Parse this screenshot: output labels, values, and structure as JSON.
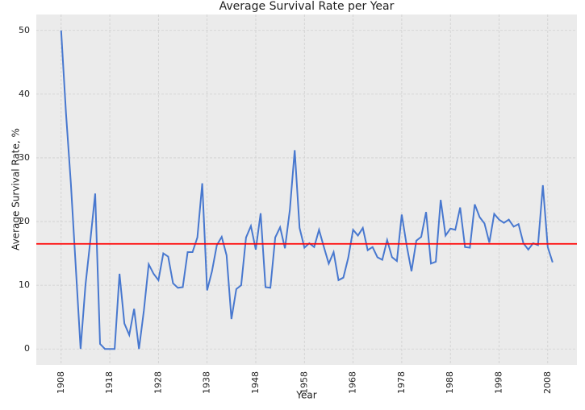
{
  "chart_data": {
    "type": "line",
    "title": "Average Survival Rate per Year",
    "x_label": "Year",
    "y_label": "Average Survival Rate, %",
    "x": [
      1908,
      1909,
      1910,
      1911,
      1912,
      1913,
      1914,
      1915,
      1916,
      1917,
      1918,
      1919,
      1920,
      1921,
      1922,
      1923,
      1924,
      1925,
      1926,
      1927,
      1928,
      1929,
      1930,
      1931,
      1932,
      1933,
      1934,
      1935,
      1936,
      1937,
      1938,
      1939,
      1940,
      1941,
      1942,
      1943,
      1944,
      1945,
      1946,
      1947,
      1948,
      1949,
      1950,
      1951,
      1952,
      1953,
      1954,
      1955,
      1956,
      1957,
      1958,
      1959,
      1960,
      1961,
      1962,
      1963,
      1964,
      1965,
      1966,
      1967,
      1968,
      1969,
      1970,
      1971,
      1972,
      1973,
      1974,
      1975,
      1976,
      1977,
      1978,
      1979,
      1980,
      1981,
      1982,
      1983,
      1984,
      1985,
      1986,
      1987,
      1988,
      1989,
      1990,
      1991,
      1992,
      1993,
      1994,
      1995,
      1996,
      1997,
      1998,
      1999,
      2000,
      2001,
      2002,
      2003,
      2004,
      2005,
      2006,
      2007,
      2008,
      2009
    ],
    "series": [
      {
        "color": "#4878cf",
        "values": [
          50,
          37,
          26,
          13,
          0,
          10,
          17,
          24.4,
          0.8,
          0,
          0,
          0,
          11.8,
          4,
          2.2,
          6.3,
          0,
          6,
          13.3,
          11.8,
          10.8,
          15,
          14.5,
          10.3,
          9.6,
          9.7,
          15.2,
          15.2,
          17.5,
          26,
          9.2,
          12.2,
          16.3,
          17.6,
          14.7,
          4.7,
          9.4,
          10,
          17.5,
          19.3,
          15.6,
          21.3,
          9.7,
          9.6,
          17.5,
          19.1,
          15.8,
          21.8,
          31.2,
          19,
          15.9,
          16.6,
          16,
          18.7,
          16,
          13.4,
          15.2,
          10.8,
          11.2,
          14.3,
          18.7,
          17.8,
          19,
          15.5,
          16,
          14.4,
          14,
          17.1,
          14.4,
          13.8,
          21.1,
          16.3,
          12.2,
          17,
          17.6,
          21.5,
          13.4,
          13.7,
          23.4,
          17.8,
          18.9,
          18.7,
          22.2,
          16,
          15.9,
          22.7,
          20.7,
          19.7,
          16.7,
          21.2,
          20.3,
          19.8,
          20.3,
          19.2,
          19.6,
          16.6,
          15.6,
          16.6,
          16.3,
          25.7,
          16,
          13.6
        ]
      }
    ],
    "reference_line": {
      "value": 16.5,
      "color": "#ff0000"
    },
    "xlim": [
      1902.9,
      2014
    ],
    "ylim": [
      -2.5,
      52.5
    ],
    "xticks": [
      1908,
      1918,
      1928,
      1938,
      1948,
      1958,
      1968,
      1978,
      1988,
      1998,
      2008
    ],
    "yticks": [
      0,
      10,
      20,
      30,
      40,
      50
    ],
    "grid": true
  }
}
